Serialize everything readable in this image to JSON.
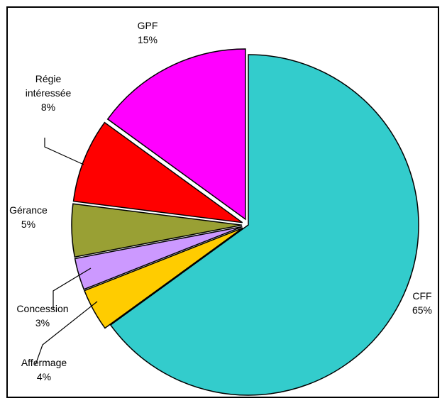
{
  "chart_data": {
    "type": "pie",
    "title": "",
    "legend": "none",
    "slices": [
      {
        "name": "CFF",
        "pct_label": "65%",
        "value": 65,
        "color": "#33CCCC"
      },
      {
        "name": "Affermage",
        "pct_label": "4%",
        "value": 4,
        "color": "#FFCC00"
      },
      {
        "name": "Concession",
        "pct_label": "3%",
        "value": 3,
        "color": "#CC99FF"
      },
      {
        "name": "Gérance",
        "pct_label": "5%",
        "value": 5,
        "color": "#99A034"
      },
      {
        "name": "Régie intéressée",
        "pct_label": "8%",
        "value": 8,
        "color": "#FF0000"
      },
      {
        "name": "GPF",
        "pct_label": "15%",
        "value": 15,
        "color": "#FF00FF"
      }
    ]
  }
}
